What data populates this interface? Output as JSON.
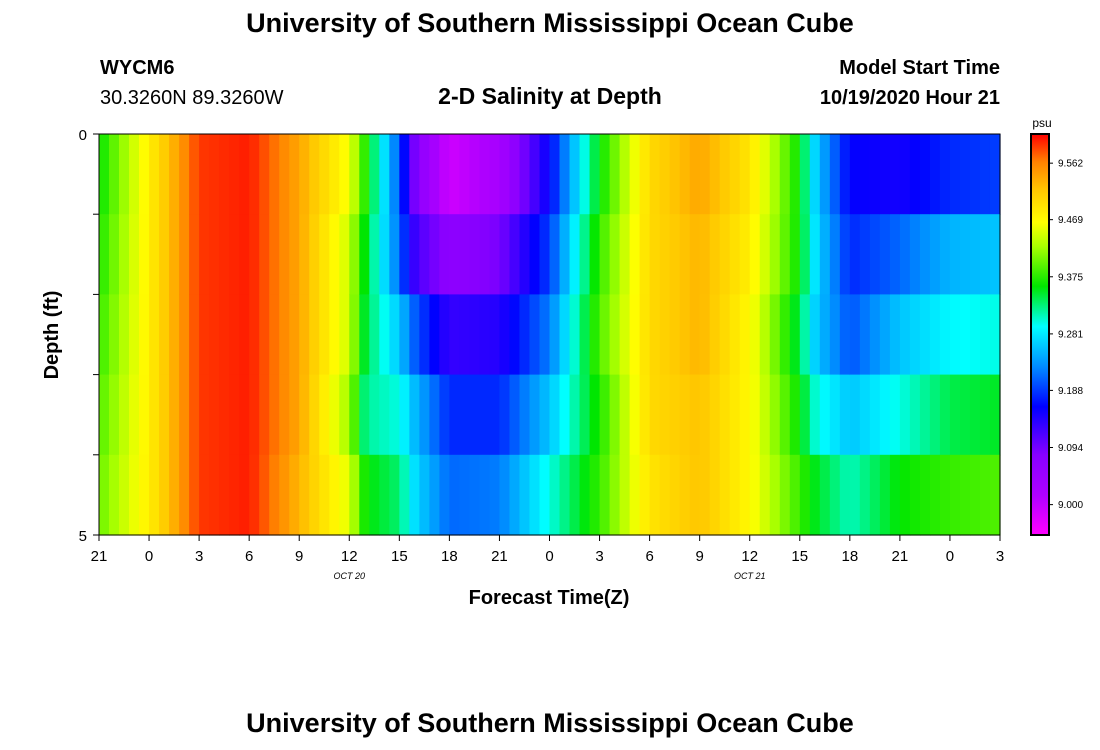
{
  "header": {
    "title": "University of Southern Mississippi Ocean Cube",
    "footer_title": "University of Southern Mississippi Ocean Cube",
    "station_id": "WYCM6",
    "station_coords": "30.3260N 89.3260W",
    "plot_title": "2-D Salinity at Depth",
    "model_start_label": "Model Start Time",
    "model_start_value": "10/19/2020 Hour 21"
  },
  "chart_data": {
    "type": "heatmap",
    "title": "2-D Salinity at Depth",
    "xlabel": "Forecast Time(Z)",
    "ylabel": "Depth (ft)",
    "x_tick_labels": [
      "21",
      "0",
      "3",
      "6",
      "9",
      "12",
      "15",
      "18",
      "21",
      "0",
      "3",
      "6",
      "9",
      "12",
      "15",
      "18",
      "21",
      "0",
      "3"
    ],
    "date_labels": [
      {
        "label": "OCT 20",
        "at_tick": 5
      },
      {
        "label": "OCT 21",
        "at_tick": 13
      }
    ],
    "y_tick_labels": [
      "0",
      "5"
    ],
    "ylim": [
      0,
      5
    ],
    "x_hours_range": [
      0,
      54
    ],
    "colorbar": {
      "unit": "psu",
      "min": 8.95,
      "max": 9.61,
      "tick_values": [
        9.0,
        9.094,
        9.188,
        9.281,
        9.375,
        9.469,
        9.562
      ],
      "tick_labels": [
        "9.000",
        "9.094",
        "9.188",
        "9.281",
        "9.375",
        "9.469",
        "9.562"
      ]
    },
    "depth_layers": 5,
    "time_profiles": [
      {
        "hour": 0,
        "layers": [
          9.36,
          9.37,
          9.38,
          9.39,
          9.4
        ]
      },
      {
        "hour": 3,
        "layers": [
          9.48,
          9.48,
          9.48,
          9.48,
          9.48
        ]
      },
      {
        "hour": 6,
        "layers": [
          9.59,
          9.59,
          9.59,
          9.59,
          9.59
        ]
      },
      {
        "hour": 9,
        "layers": [
          9.6,
          9.6,
          9.6,
          9.6,
          9.6
        ]
      },
      {
        "hour": 12,
        "layers": [
          9.54,
          9.54,
          9.54,
          9.54,
          9.53
        ]
      },
      {
        "hour": 15,
        "layers": [
          9.46,
          9.44,
          9.44,
          9.42,
          9.45
        ]
      },
      {
        "hour": 16,
        "layers": [
          9.37,
          9.35,
          9.34,
          9.32,
          9.36
        ]
      },
      {
        "hour": 18,
        "layers": [
          9.2,
          9.21,
          9.26,
          9.3,
          9.33
        ]
      },
      {
        "hour": 19,
        "layers": [
          9.08,
          9.12,
          9.2,
          9.25,
          9.27
        ]
      },
      {
        "hour": 21,
        "layers": [
          8.99,
          9.07,
          9.13,
          9.18,
          9.21
        ]
      },
      {
        "hour": 24,
        "layers": [
          9.03,
          9.09,
          9.14,
          9.18,
          9.22
        ]
      },
      {
        "hour": 27,
        "layers": [
          9.16,
          9.19,
          9.22,
          9.26,
          9.3
        ]
      },
      {
        "hour": 30,
        "layers": [
          9.36,
          9.38,
          9.39,
          9.37,
          9.38
        ]
      },
      {
        "hour": 33,
        "layers": [
          9.5,
          9.5,
          9.5,
          9.5,
          9.49
        ]
      },
      {
        "hour": 36,
        "layers": [
          9.54,
          9.53,
          9.53,
          9.52,
          9.52
        ]
      },
      {
        "hour": 39,
        "layers": [
          9.49,
          9.48,
          9.47,
          9.47,
          9.47
        ]
      },
      {
        "hour": 42,
        "layers": [
          9.36,
          9.36,
          9.34,
          9.36,
          9.38
        ]
      },
      {
        "hour": 43,
        "layers": [
          9.26,
          9.27,
          9.26,
          9.3,
          9.35
        ]
      },
      {
        "hour": 45,
        "layers": [
          9.16,
          9.18,
          9.2,
          9.26,
          9.31
        ]
      },
      {
        "hour": 48,
        "layers": [
          9.15,
          9.21,
          9.26,
          9.3,
          9.36
        ]
      },
      {
        "hour": 51,
        "layers": [
          9.18,
          9.25,
          9.29,
          9.34,
          9.38
        ]
      },
      {
        "hour": 54,
        "layers": [
          9.19,
          9.26,
          9.3,
          9.35,
          9.39
        ]
      }
    ]
  }
}
